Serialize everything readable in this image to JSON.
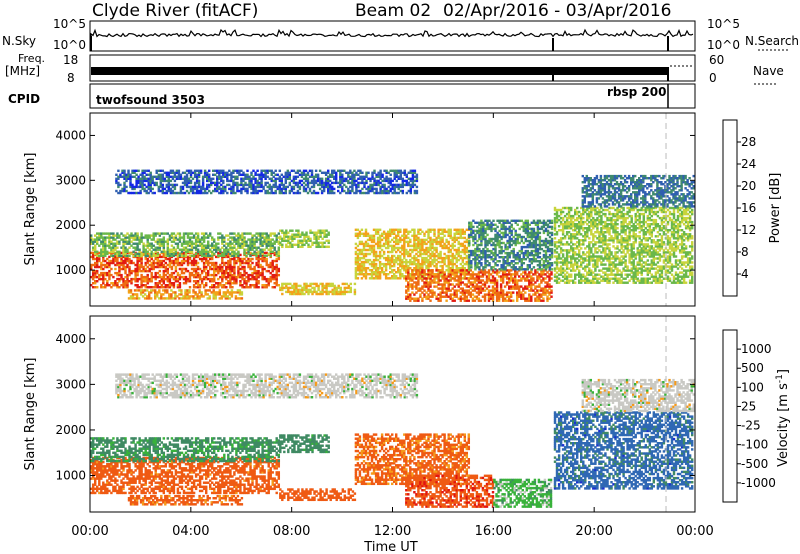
{
  "header": {
    "station": "Clyde River (fitACF)",
    "beam": "Beam 02",
    "date_range": "02/Apr/2016 - 03/Apr/2016"
  },
  "summary": {
    "nsky_label": "N.Sky",
    "nsearch_label": "N.Search",
    "nsky_ticks": [
      "10^5",
      "10^0"
    ],
    "nsearch_ticks": [
      "10^5",
      "10^0"
    ],
    "freq_label_1": "Freq.",
    "freq_label_2": "[MHz]",
    "freq_ticks": [
      "18",
      "8"
    ],
    "nave_label": "Nave",
    "nave_ticks": [
      "60",
      "0"
    ],
    "cpid_label": "CPID",
    "cpid_segments": [
      "twofsound 3503",
      "rbsp 200"
    ],
    "cpid_change_hour": 22.85
  },
  "colors": {
    "power_scale": [
      "#1428e6",
      "#2f5fb0",
      "#3f8a6e",
      "#6ab84a",
      "#c8d43c",
      "#f3a21a",
      "#ef6a12",
      "#e21a12"
    ],
    "velocity_scale": [
      "#e2140f",
      "#ef5a13",
      "#f59a1a",
      "#c9c9c4",
      "#38b23a",
      "#3f8a63",
      "#2f68b4",
      "#1a2fd0"
    ],
    "ground_scatter": "#bfbfbf"
  },
  "chart_data": [
    {
      "type": "heatmap",
      "name": "power",
      "ylabel": "Slant Range [km]",
      "yticks": [
        "1000",
        "2000",
        "3000",
        "4000"
      ],
      "ylim": [
        200,
        4500
      ],
      "xlim": [
        0,
        24
      ],
      "colorbar_label": "Power [dB]",
      "colorbar_ticks": [
        "4",
        "8",
        "12",
        "16",
        "20",
        "24",
        "28"
      ],
      "colorbar_range": [
        0,
        32
      ],
      "regions": [
        {
          "t": [
            0.0,
            7.5
          ],
          "r": [
            600,
            1400
          ],
          "v": 27
        },
        {
          "t": [
            0.0,
            7.5
          ],
          "r": [
            1300,
            1800
          ],
          "v": 14
        },
        {
          "t": [
            1.5,
            6.0
          ],
          "r": [
            350,
            550
          ],
          "v": 22
        },
        {
          "t": [
            7.5,
            9.5
          ],
          "r": [
            1500,
            1900
          ],
          "v": 16
        },
        {
          "t": [
            7.5,
            10.5
          ],
          "r": [
            450,
            700
          ],
          "v": 20
        },
        {
          "t": [
            1.0,
            13.0
          ],
          "r": [
            2700,
            3200
          ],
          "v": 6
        },
        {
          "t": [
            10.5,
            15.0
          ],
          "r": [
            800,
            1900
          ],
          "v": 20
        },
        {
          "t": [
            12.5,
            18.3
          ],
          "r": [
            300,
            1000
          ],
          "v": 26
        },
        {
          "t": [
            15.0,
            18.3
          ],
          "r": [
            1000,
            2100
          ],
          "v": 10
        },
        {
          "t": [
            18.4,
            23.9
          ],
          "r": [
            700,
            2400
          ],
          "v": 16
        },
        {
          "t": [
            19.5,
            23.9
          ],
          "r": [
            2400,
            3100
          ],
          "v": 8
        }
      ]
    },
    {
      "type": "heatmap",
      "name": "velocity",
      "ylabel": "Slant Range [km]",
      "xlabel": "Time UT",
      "xticks": [
        "00:00",
        "04:00",
        "08:00",
        "12:00",
        "16:00",
        "20:00",
        "00:00"
      ],
      "yticks": [
        "1000",
        "2000",
        "3000",
        "4000"
      ],
      "ylim": [
        200,
        4500
      ],
      "xlim": [
        0,
        24
      ],
      "colorbar_label": "Velocity [m s^-1]",
      "colorbar_ticks": [
        "1000",
        "500",
        "100",
        "25",
        "-25",
        "-100",
        "-500",
        "-1000"
      ],
      "regions": [
        {
          "t": [
            0.0,
            7.5
          ],
          "r": [
            600,
            1400
          ],
          "v": -200
        },
        {
          "t": [
            0.0,
            7.5
          ],
          "r": [
            1300,
            1800
          ],
          "v": 150
        },
        {
          "t": [
            1.5,
            6.0
          ],
          "r": [
            350,
            550
          ],
          "v": -150
        },
        {
          "t": [
            7.5,
            9.5
          ],
          "r": [
            1500,
            1900
          ],
          "v": 200
        },
        {
          "t": [
            7.5,
            10.5
          ],
          "r": [
            450,
            700
          ],
          "v": -300
        },
        {
          "t": [
            1.0,
            13.0
          ],
          "r": [
            2700,
            3200
          ],
          "v": 0
        },
        {
          "t": [
            10.5,
            15.0
          ],
          "r": [
            800,
            1900
          ],
          "v": -150
        },
        {
          "t": [
            12.5,
            16.0
          ],
          "r": [
            300,
            1000
          ],
          "v": -400
        },
        {
          "t": [
            16.0,
            18.3
          ],
          "r": [
            300,
            900
          ],
          "v": 60
        },
        {
          "t": [
            18.4,
            23.9
          ],
          "r": [
            700,
            2400
          ],
          "v": 700
        },
        {
          "t": [
            19.5,
            23.9
          ],
          "r": [
            2400,
            3100
          ],
          "v": 0
        }
      ]
    }
  ]
}
